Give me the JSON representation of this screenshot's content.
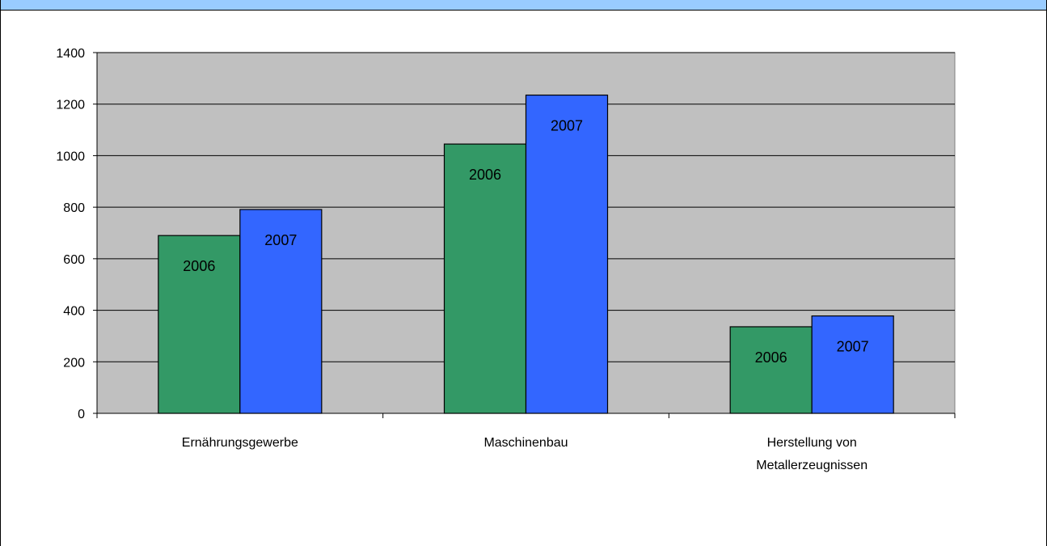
{
  "chart_data": {
    "type": "bar",
    "categories": [
      [
        "Ernährungsgewerbe"
      ],
      [
        "Maschinenbau"
      ],
      [
        "Herstellung von",
        "Metallerzeugnissen"
      ]
    ],
    "series": [
      {
        "values": [
          690,
          1045,
          336
        ],
        "color": "#339966",
        "data_label": "2006"
      },
      {
        "values": [
          791,
          1235,
          378
        ],
        "color": "#3366ff",
        "data_label": "2007"
      }
    ],
    "ylim": [
      0,
      1400
    ],
    "yticks": [
      0,
      200,
      400,
      600,
      800,
      1000,
      1200,
      1400
    ],
    "grid": true,
    "plot_background": "#c0c0c0",
    "frame_accent": "#99ccff"
  }
}
